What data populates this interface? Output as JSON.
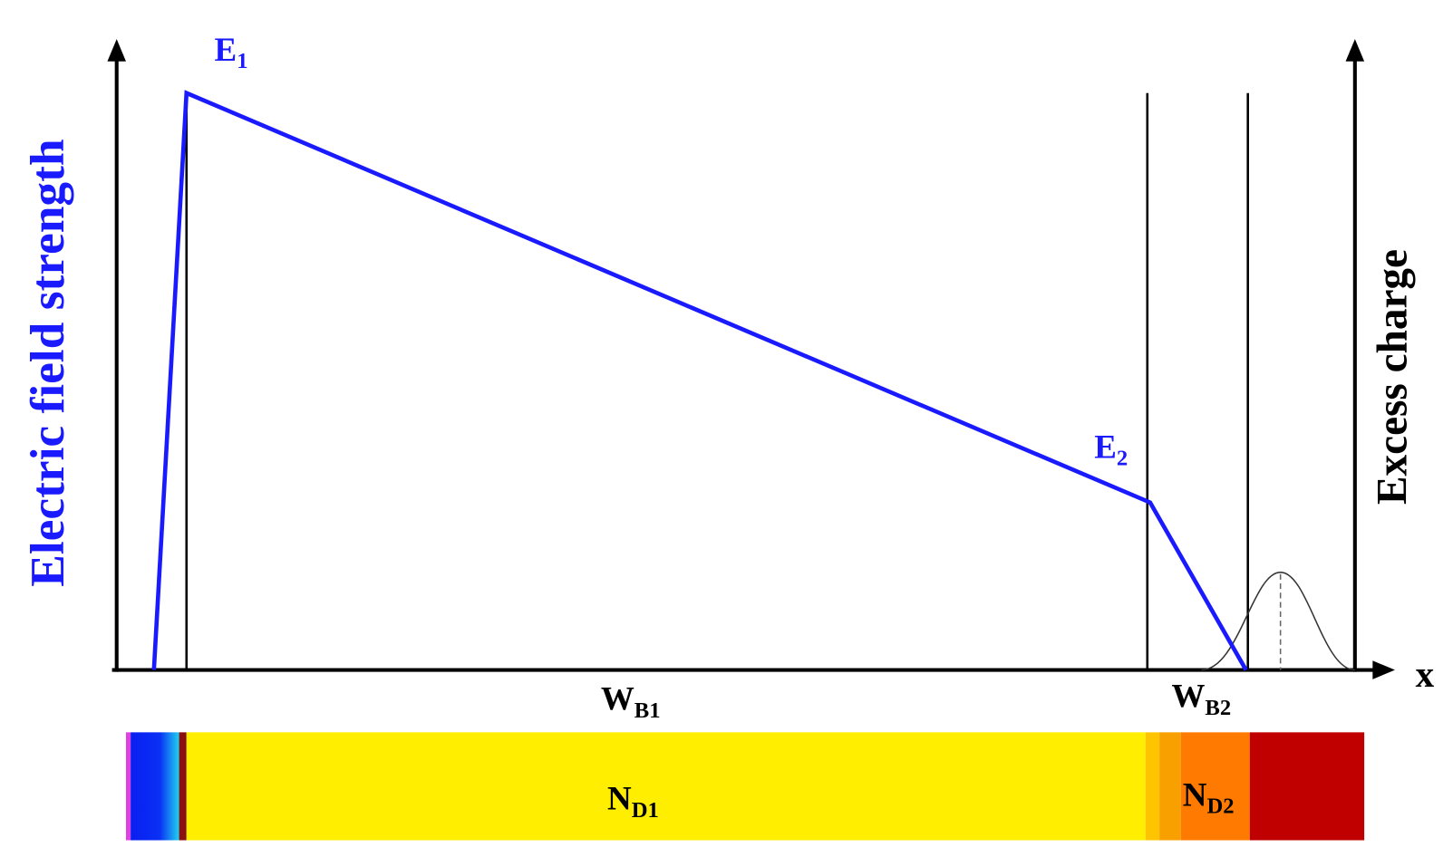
{
  "axes": {
    "left_label": "Electric field strength",
    "right_label": "Excess charge",
    "x_label": "x"
  },
  "labels": {
    "e1": {
      "main": "E",
      "sub": "1"
    },
    "e2": {
      "main": "E",
      "sub": "2"
    },
    "wb1": {
      "main": "W",
      "sub": "B1"
    },
    "wb2": {
      "main": "W",
      "sub": "B2"
    },
    "nd1": {
      "main": "N",
      "sub": "D1"
    },
    "nd2": {
      "main": "N",
      "sub": "D2"
    }
  }
}
